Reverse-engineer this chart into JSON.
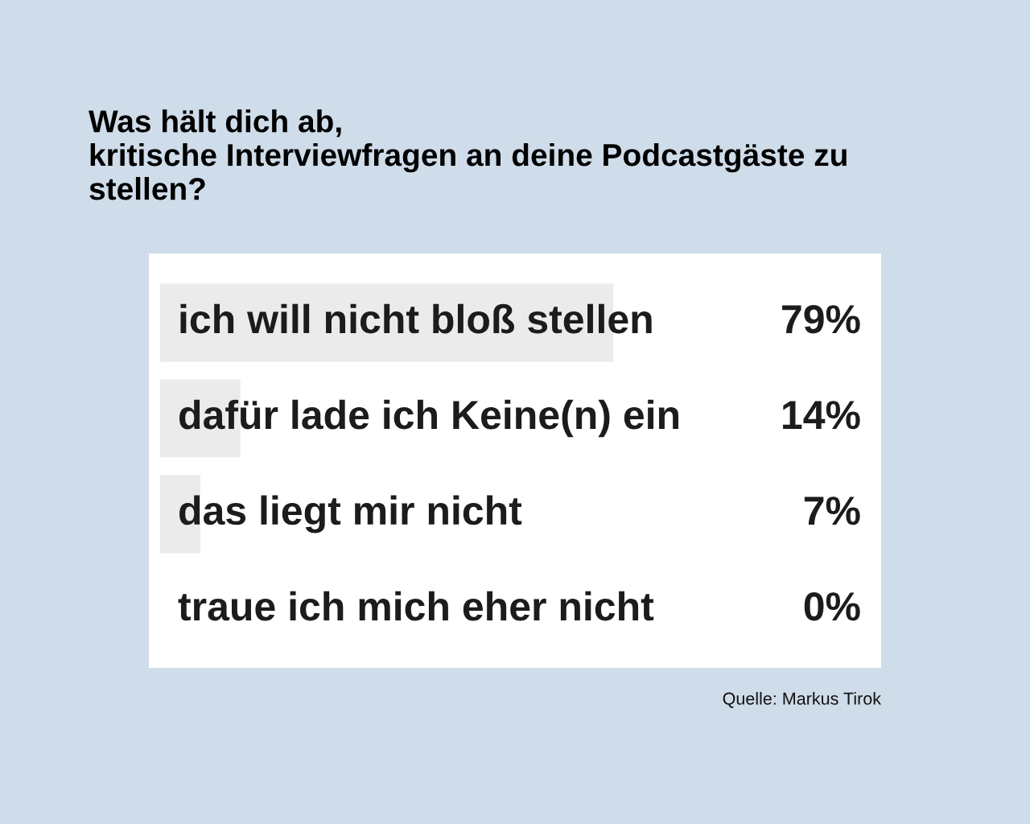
{
  "chart_data": {
    "type": "bar",
    "orientation": "horizontal",
    "title": "Was hält dich ab,\nkritische Interviewfragen an deine Podcastgäste zu\nstellen?",
    "categories": [
      "ich will nicht bloß stellen",
      "dafür lade ich Keine(n) ein",
      "das liegt mir nicht",
      "traue ich mich eher nicht"
    ],
    "values": [
      79,
      14,
      7,
      0
    ],
    "value_labels": [
      "79%",
      "14%",
      "7%",
      "0%"
    ],
    "color": "#ebebeb",
    "annotations": [
      "Quelle: Markus Tirok"
    ]
  }
}
